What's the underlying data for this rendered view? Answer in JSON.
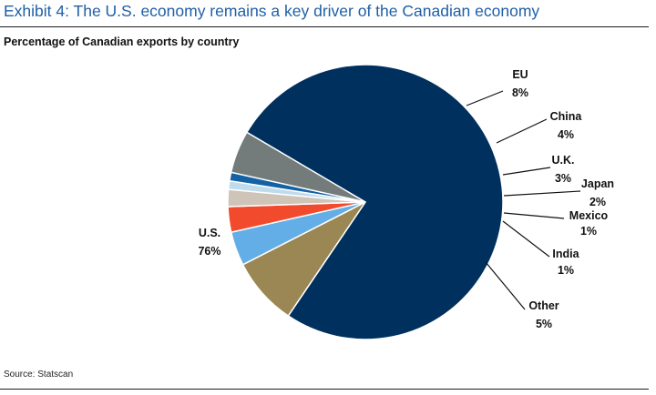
{
  "header": {
    "title": "Exhibit 4: The U.S. economy remains a key driver of the Canadian economy",
    "subtitle": "Percentage of Canadian exports by country"
  },
  "footer": {
    "source": "Source: Statscan"
  },
  "chart_data": {
    "type": "pie",
    "categories": [
      "U.S.",
      "EU",
      "China",
      "U.K.",
      "Japan",
      "Mexico",
      "India",
      "Other"
    ],
    "values": [
      76,
      8,
      4,
      3,
      2,
      1,
      1,
      5
    ],
    "value_labels": [
      "76%",
      "8%",
      "4%",
      "3%",
      "2%",
      "1%",
      "1%",
      "5%"
    ],
    "colors": [
      "#00305e",
      "#9b8753",
      "#63aee6",
      "#f24a2c",
      "#cec4b8",
      "#bfdcec",
      "#1462a6",
      "#737b7b"
    ],
    "legend": "none"
  }
}
